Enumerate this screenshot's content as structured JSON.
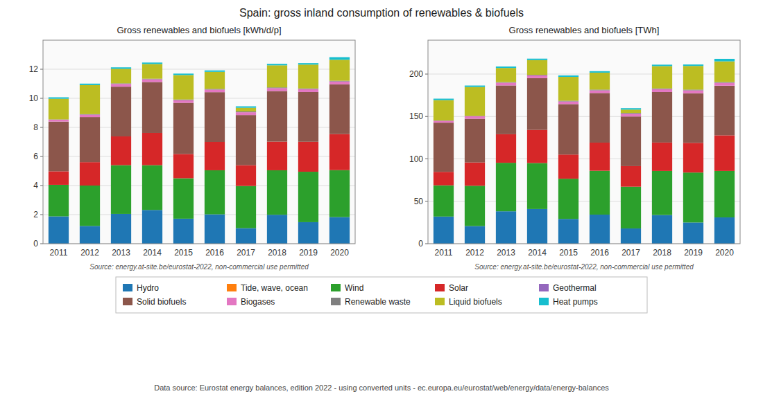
{
  "title": "Spain: gross inland consumption of renewables & biofuels",
  "annotations": [
    "Data source: Eurostat energy balances, edition 2022 - using converted units - ec.europa.eu/eurostat/web/energy/data/energy-balances"
  ],
  "chart_data": [
    {
      "type": "bar",
      "stacked": true,
      "grid": true,
      "legend": "bottom",
      "title": "Gross renewables and biofuels [kWh/d/p]",
      "annotations": [
        "Source: energy.at-site.be/eurostat-2022, non-commercial use permitted"
      ],
      "categories": [
        "2011",
        "2012",
        "2013",
        "2014",
        "2015",
        "2016",
        "2017",
        "2018",
        "2019",
        "2020"
      ],
      "ylim": [
        0,
        14
      ],
      "yticks": [
        0,
        2,
        4,
        6,
        8,
        10,
        12
      ],
      "series": [
        {
          "name": "Hydro",
          "color": "#1f77b4",
          "values": [
            1.88,
            1.22,
            2.05,
            2.32,
            1.72,
            2.02,
            1.07,
            1.99,
            1.48,
            1.83
          ]
        },
        {
          "name": "Tide, wave, ocean",
          "color": "#ff7f0e",
          "values": [
            0.0,
            0.0,
            0.0,
            0.0,
            0.0,
            0.0,
            0.0,
            0.0,
            0.0,
            0.0
          ]
        },
        {
          "name": "Wind",
          "color": "#2ca02c",
          "values": [
            2.17,
            2.78,
            3.35,
            3.08,
            2.78,
            3.03,
            2.9,
            3.06,
            3.47,
            3.23
          ]
        },
        {
          "name": "Solar",
          "color": "#d62728",
          "values": [
            0.93,
            1.61,
            1.98,
            2.22,
            1.67,
            1.95,
            1.43,
            1.97,
            2.06,
            2.48
          ]
        },
        {
          "name": "Geothermal",
          "color": "#9467bd",
          "values": [
            0.0,
            0.0,
            0.0,
            0.0,
            0.0,
            0.0,
            0.0,
            0.0,
            0.0,
            0.0
          ]
        },
        {
          "name": "Solid biofuels",
          "color": "#8c564b",
          "values": [
            3.42,
            3.1,
            3.42,
            3.5,
            3.52,
            3.42,
            3.45,
            3.48,
            3.42,
            3.42
          ]
        },
        {
          "name": "Biogases",
          "color": "#e377c2",
          "values": [
            0.13,
            0.17,
            0.19,
            0.19,
            0.18,
            0.18,
            0.19,
            0.2,
            0.2,
            0.2
          ]
        },
        {
          "name": "Renewable waste",
          "color": "#7f7f7f",
          "values": [
            0.02,
            0.03,
            0.04,
            0.04,
            0.05,
            0.05,
            0.06,
            0.05,
            0.05,
            0.05
          ]
        },
        {
          "name": "Liquid biofuels",
          "color": "#bcbd22",
          "values": [
            1.42,
            2.0,
            1.0,
            1.01,
            1.68,
            1.17,
            0.25,
            1.52,
            1.64,
            1.44
          ]
        },
        {
          "name": "Heat pumps",
          "color": "#17becf",
          "values": [
            0.1,
            0.1,
            0.1,
            0.1,
            0.1,
            0.1,
            0.1,
            0.1,
            0.1,
            0.18
          ]
        }
      ]
    },
    {
      "type": "bar",
      "stacked": true,
      "grid": true,
      "title": "Gross renewables and biofuels [TWh]",
      "annotations": [
        "Source: energy.at-site.be/eurostat-2022, non-commercial use permitted"
      ],
      "categories": [
        "2011",
        "2012",
        "2013",
        "2014",
        "2015",
        "2016",
        "2017",
        "2018",
        "2019",
        "2020"
      ],
      "ylim": [
        0,
        240
      ],
      "yticks": [
        0,
        50,
        100,
        150,
        200
      ],
      "series": [
        {
          "name": "Hydro",
          "color": "#1f77b4",
          "values": [
            32.0,
            20.8,
            38.2,
            40.9,
            29.2,
            34.3,
            18.0,
            33.8,
            25.0,
            31.0
          ]
        },
        {
          "name": "Tide, wave, ocean",
          "color": "#ff7f0e",
          "values": [
            0.0,
            0.0,
            0.0,
            0.0,
            0.0,
            0.0,
            0.0,
            0.0,
            0.0,
            0.0
          ]
        },
        {
          "name": "Wind",
          "color": "#2ca02c",
          "values": [
            36.8,
            47.5,
            57.2,
            54.2,
            47.4,
            51.7,
            49.2,
            52.0,
            58.9,
            54.8
          ]
        },
        {
          "name": "Solar",
          "color": "#d62728",
          "values": [
            15.9,
            27.5,
            33.7,
            39.1,
            28.5,
            33.2,
            24.3,
            33.5,
            35.0,
            42.0
          ]
        },
        {
          "name": "Geothermal",
          "color": "#9467bd",
          "values": [
            0.0,
            0.0,
            0.0,
            0.0,
            0.0,
            0.0,
            0.0,
            0.0,
            0.0,
            0.0
          ]
        },
        {
          "name": "Solid biofuels",
          "color": "#8c564b",
          "values": [
            58.0,
            51.5,
            57.5,
            61.0,
            59.5,
            58.5,
            58.5,
            59.5,
            58.5,
            58.5
          ]
        },
        {
          "name": "Biogases",
          "color": "#e377c2",
          "values": [
            2.2,
            2.9,
            3.2,
            3.2,
            3.1,
            3.1,
            3.2,
            3.4,
            3.4,
            3.4
          ]
        },
        {
          "name": "Renewable waste",
          "color": "#7f7f7f",
          "values": [
            0.4,
            0.5,
            0.7,
            0.7,
            0.9,
            0.9,
            1.0,
            0.9,
            0.9,
            0.9
          ]
        },
        {
          "name": "Liquid biofuels",
          "color": "#bcbd22",
          "values": [
            24.0,
            34.1,
            16.7,
            17.4,
            28.1,
            20.0,
            3.9,
            26.3,
            27.9,
            24.4
          ]
        },
        {
          "name": "Heat pumps",
          "color": "#17becf",
          "values": [
            1.7,
            1.7,
            1.7,
            1.7,
            1.7,
            1.7,
            1.7,
            1.7,
            1.7,
            3.0
          ]
        }
      ]
    }
  ]
}
